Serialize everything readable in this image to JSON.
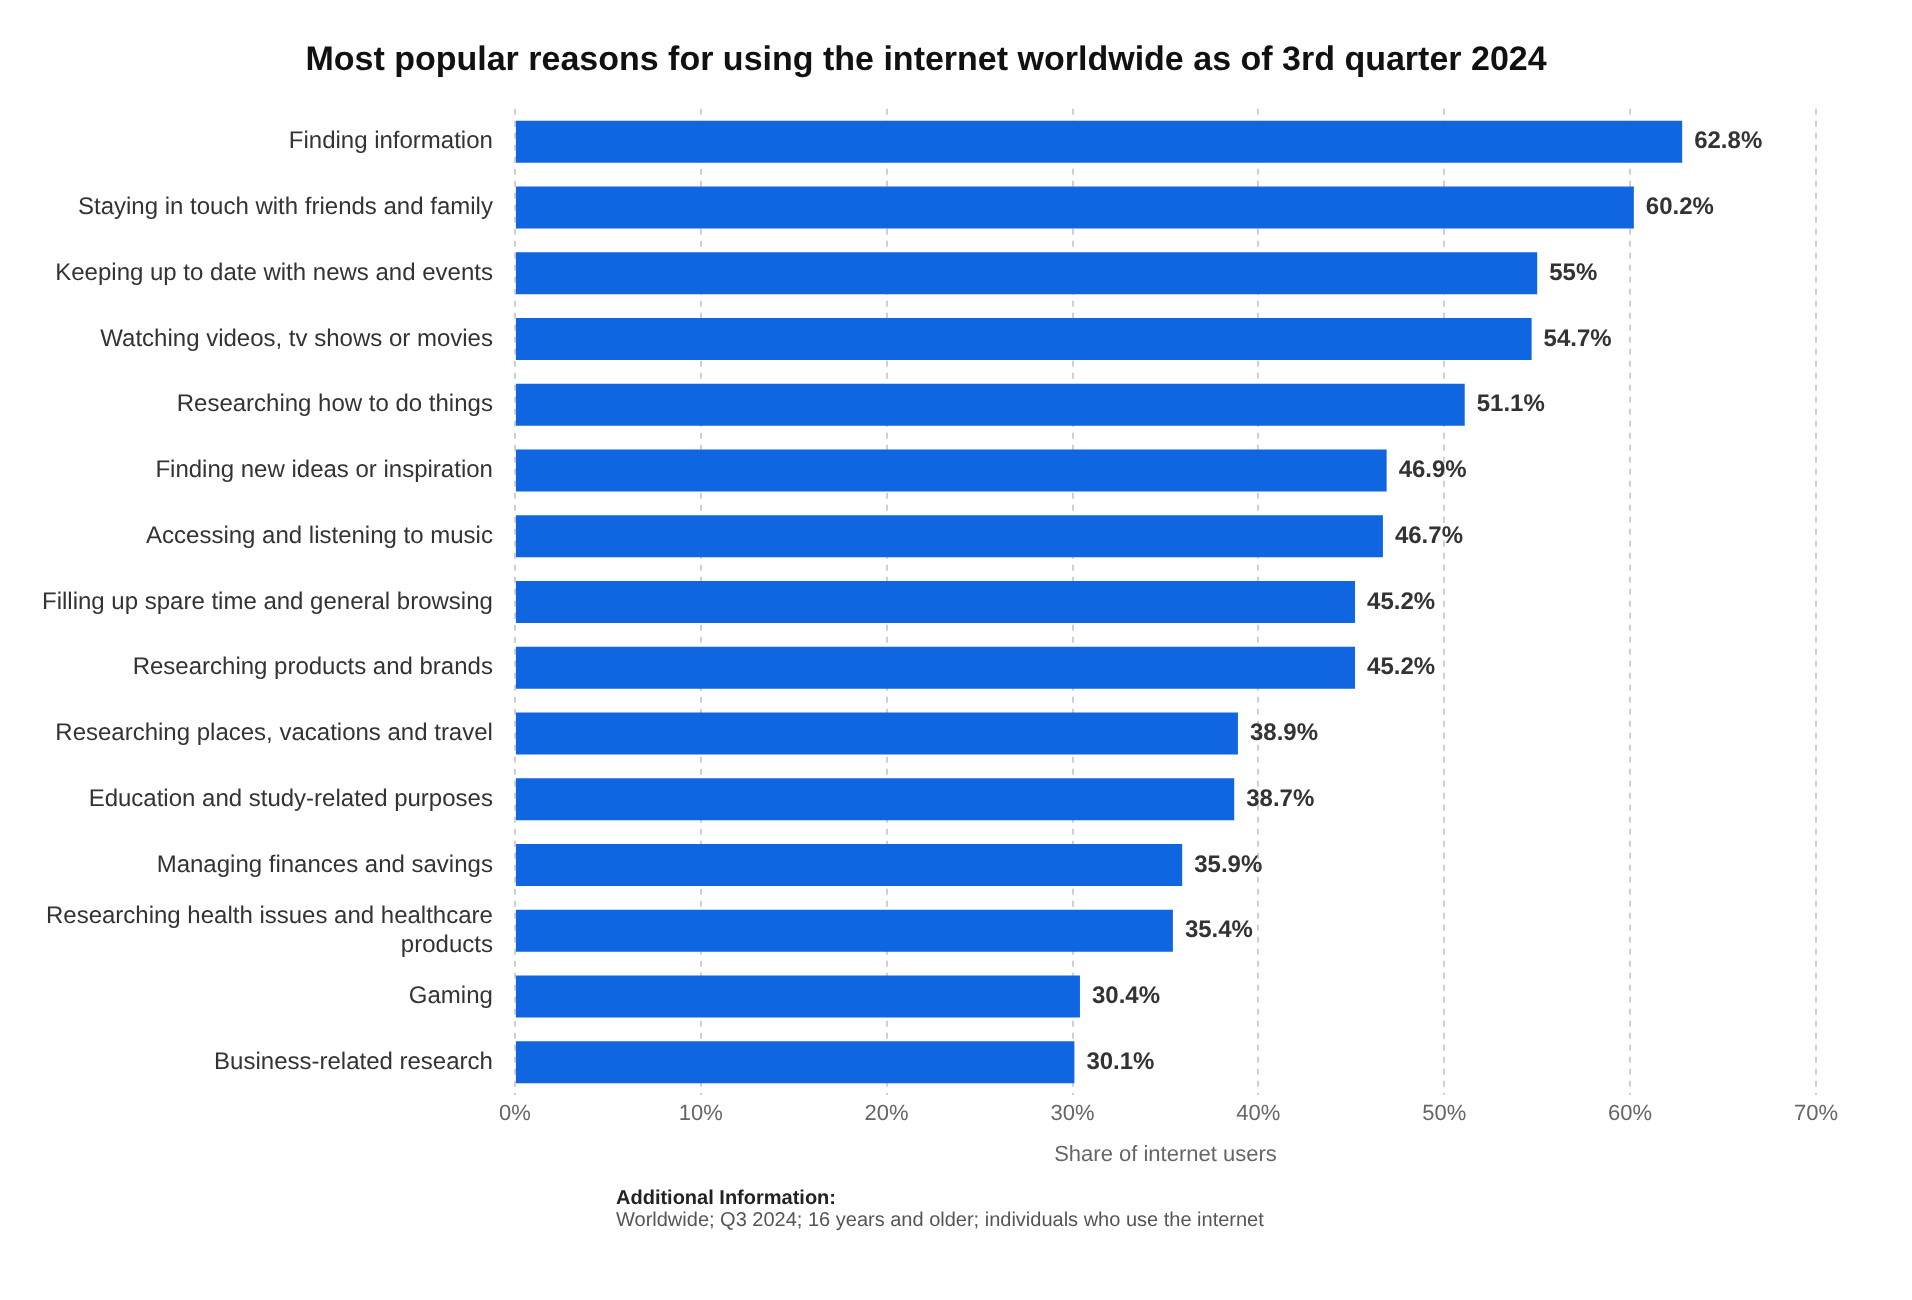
{
  "chart_data": {
    "type": "bar",
    "orientation": "horizontal",
    "title": "Most popular reasons for using the internet worldwide as of 3rd quarter 2024",
    "xlabel": "Share of internet users",
    "categories": [
      "Finding information",
      "Staying in touch with friends and family",
      "Keeping up to date with news and events",
      "Watching videos, tv shows or movies",
      "Researching how to do things",
      "Finding new ideas or inspiration",
      "Accessing and listening to music",
      "Filling up spare time and general browsing",
      "Researching products and brands",
      "Researching places, vacations and travel",
      "Education and study-related purposes",
      "Managing finances and savings",
      "Researching health issues and healthcare products",
      "Gaming",
      "Business-related research"
    ],
    "values": [
      62.8,
      60.2,
      55,
      54.7,
      51.1,
      46.9,
      46.7,
      45.2,
      45.2,
      38.9,
      38.7,
      35.9,
      35.4,
      30.4,
      30.1
    ],
    "value_labels": [
      "62.8%",
      "60.2%",
      "55%",
      "54.7%",
      "51.1%",
      "46.9%",
      "46.7%",
      "45.2%",
      "45.2%",
      "38.9%",
      "38.7%",
      "35.9%",
      "35.4%",
      "30.4%",
      "30.1%"
    ],
    "color": "#0f66e0",
    "xlim": [
      0,
      70
    ],
    "xticks": [
      {
        "value": 0,
        "label": "0%"
      },
      {
        "value": 10,
        "label": "10%"
      },
      {
        "value": 20,
        "label": "20%"
      },
      {
        "value": 30,
        "label": "30%"
      },
      {
        "value": 40,
        "label": "40%"
      },
      {
        "value": 50,
        "label": "50%"
      },
      {
        "value": 60,
        "label": "60%"
      },
      {
        "value": 70,
        "label": "70%"
      }
    ],
    "grid": "x",
    "legend": false,
    "annotations": [
      "Additional Information:",
      "Worldwide; Q3 2024; 16 years and older; individuals who use the internet"
    ]
  }
}
